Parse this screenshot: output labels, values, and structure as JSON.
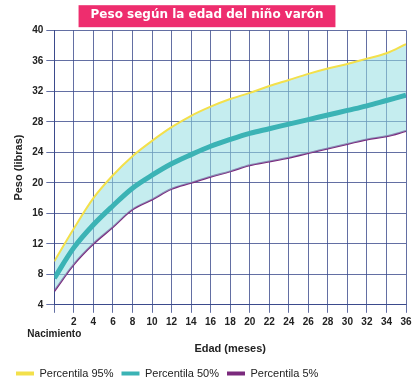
{
  "chart_data": {
    "type": "line",
    "title": "Peso según la edad del niño varón",
    "x_label": "Edad (meses)",
    "y_label": "Peso (libras)",
    "x": [
      0,
      2,
      4,
      6,
      8,
      10,
      12,
      14,
      16,
      18,
      20,
      22,
      24,
      26,
      28,
      30,
      32,
      34,
      36
    ],
    "series": [
      {
        "name": "Percentila 95%",
        "color": "#f3e04b",
        "values": [
          9.7,
          14,
          18,
          21,
          23.5,
          25.5,
          27.3,
          28.8,
          30,
          31,
          31.8,
          32.7,
          33.5,
          34.3,
          35,
          35.6,
          36.3,
          37,
          38.2
        ]
      },
      {
        "name": "Percentila 50%",
        "color": "#3bb3b5",
        "values": [
          7.5,
          11.5,
          14.5,
          17,
          19.3,
          21,
          22.5,
          23.7,
          24.8,
          25.7,
          26.5,
          27.1,
          27.7,
          28.3,
          28.9,
          29.5,
          30.1,
          30.8,
          31.5
        ]
      },
      {
        "name": "Percentila 5%",
        "color": "#7b2a7d",
        "values": [
          5.8,
          9.3,
          12,
          14.2,
          16.5,
          17.8,
          19.2,
          20,
          20.8,
          21.5,
          22.3,
          22.8,
          23.3,
          23.9,
          24.5,
          25.1,
          25.7,
          26.1,
          26.8
        ]
      }
    ],
    "xlim": [
      0,
      36
    ],
    "xticks": [
      {
        "value": 0,
        "label": "Nacimiento"
      },
      2,
      4,
      6,
      8,
      10,
      12,
      14,
      16,
      18,
      20,
      22,
      24,
      26,
      28,
      30,
      32,
      34,
      36
    ],
    "ylim": [
      4,
      40
    ],
    "yticks": [
      4,
      8,
      12,
      16,
      20,
      24,
      28,
      32,
      36,
      40
    ],
    "grid": true,
    "legend": "bottom",
    "marker": "none"
  }
}
